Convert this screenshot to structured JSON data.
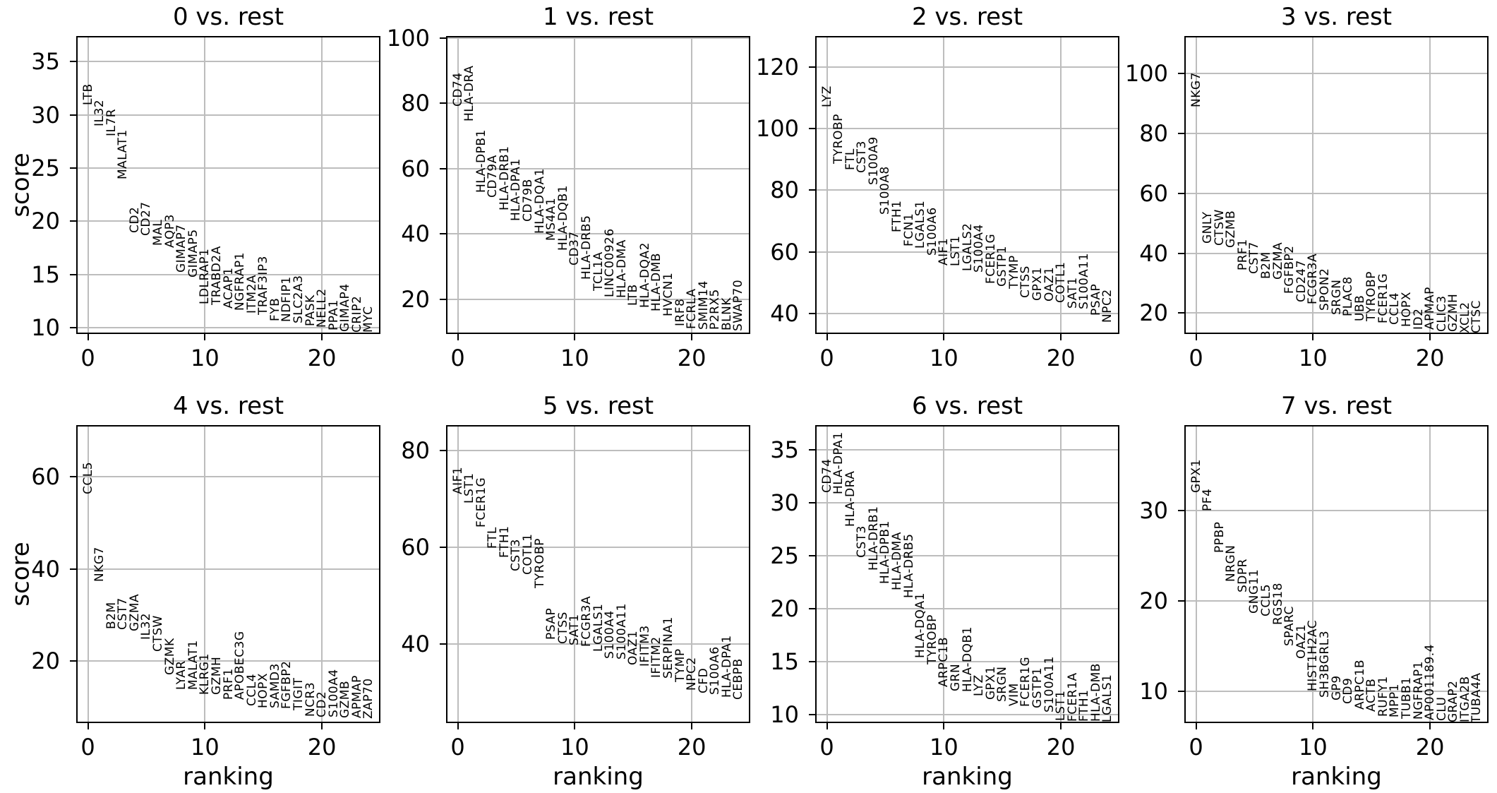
{
  "figure": {
    "background": "#ffffff",
    "text_color": "#000000",
    "grid_color": "#bdbdbd",
    "ylabel": "score",
    "xlabel": "ranking",
    "xticks": [
      0,
      10,
      20
    ],
    "xlim": [
      -1,
      25
    ]
  },
  "chart_data": [
    {
      "type": "scatter",
      "title": "0 vs. rest",
      "xlabel": "ranking",
      "ylabel": "score",
      "grid": true,
      "legend": "none",
      "xlim": [
        -1,
        25
      ],
      "xticks": [
        0,
        10,
        20
      ],
      "ylim": [
        9.4,
        37.4
      ],
      "yticks": [
        10,
        15,
        20,
        25,
        30,
        35
      ],
      "x_is_rank_of_gene": true,
      "genes": [
        "LTB",
        "IL32",
        "IL7R",
        "MALAT1",
        "CD2",
        "CD27",
        "MAL",
        "AQP3",
        "GIMAP7",
        "GIMAP5",
        "LDLRAP1",
        "TRABD2A",
        "ACAP1",
        "NGFRAP1",
        "ITM2A",
        "TRAF3IP3",
        "FYB",
        "NDFIP1",
        "SLC2A3",
        "PASK",
        "NELL2",
        "PPA1",
        "GIMAP4",
        "CRIP2",
        "MYC"
      ],
      "scores": [
        30.9,
        28.9,
        28.0,
        23.9,
        18.9,
        18.6,
        17.7,
        17.5,
        15.2,
        14.7,
        12.2,
        12.1,
        11.8,
        11.6,
        11.3,
        11.2,
        10.6,
        10.5,
        10.4,
        10.1,
        10.0,
        9.7,
        9.6,
        9.5,
        9.5
      ]
    },
    {
      "type": "scatter",
      "title": "1 vs. rest",
      "xlabel": "ranking",
      "ylabel": "score",
      "grid": true,
      "legend": "none",
      "xlim": [
        -1,
        25
      ],
      "xticks": [
        0,
        10,
        20
      ],
      "ylim": [
        9.3,
        100.6
      ],
      "yticks": [
        20,
        40,
        60,
        80,
        100
      ],
      "x_is_rank_of_gene": true,
      "genes": [
        "CD74",
        "HLA-DRA",
        "HLA-DPB1",
        "CD79A",
        "HLA-DRB1",
        "HLA-DPA1",
        "CD79B",
        "HLA-DQA1",
        "MS4A1",
        "HLA-DQB1",
        "CD37",
        "HLA-DRB5",
        "TCL1A",
        "LINC00926",
        "HLA-DMA",
        "LTB",
        "HLA-DQA2",
        "HLA-DMB",
        "HVCN1",
        "IRF8",
        "FCRLA",
        "SMIM14",
        "P2RX5",
        "BLNK",
        "SWAP70"
      ],
      "scores": [
        79.0,
        74.5,
        52.5,
        51.0,
        47.2,
        44.0,
        43.7,
        40.0,
        37.8,
        34.9,
        30.2,
        26.0,
        22.4,
        20.6,
        20.3,
        18.0,
        17.4,
        16.3,
        14.8,
        11.6,
        10.8,
        10.7,
        10.5,
        10.3,
        10.2
      ]
    },
    {
      "type": "scatter",
      "title": "2 vs. rest",
      "xlabel": "ranking",
      "ylabel": "score",
      "grid": true,
      "legend": "none",
      "xlim": [
        -1,
        25
      ],
      "xticks": [
        0,
        10,
        20
      ],
      "ylim": [
        33.4,
        130.0
      ],
      "yticks": [
        40,
        60,
        80,
        100,
        120
      ],
      "x_is_rank_of_gene": true,
      "genes": [
        "LYZ",
        "TYROBP",
        "FTL",
        "CST3",
        "S100A9",
        "S100A8",
        "FTH1",
        "FCN1",
        "LGALS1",
        "S100A6",
        "AIF1",
        "LST1",
        "LGALS2",
        "S100A4",
        "FCER1G",
        "GSTP1",
        "TYMP",
        "CTSS",
        "GPX1",
        "OAZ1",
        "COTL1",
        "SAT1",
        "S100A11",
        "PSAP",
        "NPC2"
      ],
      "scores": [
        106.9,
        88.5,
        86.6,
        85.5,
        81.7,
        72.1,
        66.4,
        61.8,
        61.0,
        58.8,
        55.7,
        55.3,
        53.8,
        53.4,
        49.6,
        48.8,
        48.1,
        45.0,
        44.2,
        43.9,
        43.5,
        41.6,
        41.5,
        39.3,
        37.0
      ]
    },
    {
      "type": "scatter",
      "title": "3 vs. rest",
      "xlabel": "ranking",
      "ylabel": "score",
      "grid": true,
      "legend": "none",
      "xlim": [
        -1,
        25
      ],
      "xticks": [
        0,
        10,
        20
      ],
      "ylim": [
        13.0,
        112.6
      ],
      "yticks": [
        20,
        40,
        60,
        80,
        100
      ],
      "x_is_rank_of_gene": true,
      "genes": [
        "NKG7",
        "GNLY",
        "CTSW",
        "GZMB",
        "PRF1",
        "CST7",
        "B2M",
        "GZMA",
        "FGFBP2",
        "CD247",
        "FCGR3A",
        "SPON2",
        "SRGN",
        "PLAC8",
        "UBB",
        "TYROBP",
        "FCER1G",
        "CCL4",
        "HOPX",
        "ID2",
        "APMAP",
        "CLIC3",
        "GZMH",
        "XCL2",
        "CTSC"
      ],
      "scores": [
        88.8,
        43.3,
        42.5,
        41.7,
        34.3,
        33.1,
        31.5,
        31.1,
        26.4,
        23.6,
        22.8,
        20.9,
        19.3,
        18.9,
        17.3,
        17.2,
        16.5,
        16.1,
        15.3,
        14.5,
        14.4,
        13.7,
        13.6,
        13.3,
        13.3
      ]
    },
    {
      "type": "scatter",
      "title": "4 vs. rest",
      "xlabel": "ranking",
      "ylabel": "score",
      "grid": true,
      "legend": "none",
      "xlim": [
        -1,
        25
      ],
      "xticks": [
        0,
        10,
        20
      ],
      "ylim": [
        6.4,
        71.3
      ],
      "yticks": [
        20,
        40,
        60
      ],
      "x_is_rank_of_gene": true,
      "genes": [
        "CCL5",
        "NKG7",
        "B2M",
        "CST7",
        "GZMA",
        "IL32",
        "CTSW",
        "GZMK",
        "LYAR",
        "MALAT1",
        "KLRG1",
        "GZMH",
        "PRF1",
        "APOBEC3G",
        "CCL4",
        "HOPX",
        "SAMD3",
        "FGFBP2",
        "TIGIT",
        "NCR3",
        "CD2",
        "S100A4",
        "GZMB",
        "APMAP",
        "ZAP70"
      ],
      "scores": [
        56.2,
        37.2,
        26.9,
        26.7,
        26.4,
        24.6,
        22.0,
        16.9,
        13.7,
        13.6,
        12.6,
        12.5,
        11.5,
        11.4,
        10.1,
        9.6,
        9.6,
        9.5,
        9.1,
        7.8,
        7.7,
        7.6,
        7.5,
        7.4,
        7.3
      ]
    },
    {
      "type": "scatter",
      "title": "5 vs. rest",
      "xlabel": "ranking",
      "ylabel": "score",
      "grid": true,
      "legend": "none",
      "xlim": [
        -1,
        25
      ],
      "xticks": [
        0,
        10,
        20
      ],
      "ylim": [
        23.6,
        85.2
      ],
      "yticks": [
        40,
        60,
        80
      ],
      "x_is_rank_of_gene": true,
      "genes": [
        "AIF1",
        "LST1",
        "FCER1G",
        "FTL",
        "FTH1",
        "CST3",
        "COTL1",
        "TYROBP",
        "PSAP",
        "CTSS",
        "SAT1",
        "FCGR3A",
        "LGALS1",
        "S100A4",
        "S100A11",
        "OAZ1",
        "IFITM3",
        "IFITM2",
        "SERPINA1",
        "TYMP",
        "NPC2",
        "CFD",
        "S100A6",
        "HLA-DPA1",
        "CEBPB"
      ],
      "scores": [
        70.9,
        69.0,
        64.1,
        59.7,
        57.8,
        55.0,
        54.2,
        51.5,
        40.8,
        40.0,
        39.6,
        39.3,
        38.4,
        36.9,
        36.8,
        35.6,
        35.3,
        33.0,
        32.8,
        32.0,
        30.3,
        29.7,
        29.5,
        28.9,
        28.4
      ]
    },
    {
      "type": "scatter",
      "title": "6 vs. rest",
      "xlabel": "ranking",
      "ylabel": "score",
      "grid": true,
      "legend": "none",
      "xlim": [
        -1,
        25
      ],
      "xticks": [
        0,
        10,
        20
      ],
      "ylim": [
        9.2,
        37.3
      ],
      "yticks": [
        10,
        15,
        20,
        25,
        30,
        35
      ],
      "x_is_rank_of_gene": true,
      "genes": [
        "CD74",
        "HLA-DPA1",
        "HLA-DRA",
        "CST3",
        "HLA-DRB1",
        "HLA-DPB1",
        "HLA-DMA",
        "HLA-DRB5",
        "HLA-DQA1",
        "TYROBP",
        "ARPC1B",
        "GRN",
        "HLA-DQB1",
        "LYZ",
        "GPX1",
        "SRGN",
        "VIM",
        "FCER1G",
        "GSTP1",
        "S100A11",
        "LST1",
        "FCER1A",
        "FTH1",
        "HLA-DMB",
        "LGALS1"
      ],
      "scores": [
        30.9,
        30.8,
        27.7,
        24.8,
        23.6,
        22.3,
        21.7,
        21.0,
        15.3,
        14.7,
        12.6,
        12.2,
        12.1,
        11.7,
        11.4,
        11.2,
        10.8,
        10.7,
        10.6,
        10.2,
        9.4,
        9.35,
        9.3,
        9.3,
        9.25
      ]
    },
    {
      "type": "scatter",
      "title": "7 vs. rest",
      "xlabel": "ranking",
      "ylabel": "score",
      "grid": true,
      "legend": "none",
      "xlim": [
        -1,
        25
      ],
      "xticks": [
        0,
        10,
        20
      ],
      "ylim": [
        6.5,
        39.4
      ],
      "yticks": [
        10,
        20,
        30
      ],
      "x_is_rank_of_gene": true,
      "genes": [
        "GPX1",
        "PF4",
        "PPBP",
        "NRGN",
        "SDPR",
        "GNG11",
        "CCL5",
        "RGS18",
        "SPARC",
        "OAZ1",
        "HIST1H2AC",
        "SH3BGRL3",
        "GP9",
        "CD9",
        "ARPC1B",
        "ACTB",
        "RUFY1",
        "MPP1",
        "TUBB1",
        "NGFRAP1",
        "AP001189.4",
        "CLU",
        "GRAP2",
        "ITGA2B",
        "TUBA4A"
      ],
      "scores": [
        31.9,
        29.9,
        25.3,
        22.1,
        20.9,
        18.6,
        18.3,
        17.3,
        15.0,
        13.6,
        10.0,
        9.3,
        9.0,
        8.6,
        8.0,
        7.75,
        7.2,
        7.1,
        7.0,
        6.9,
        6.8,
        6.7,
        6.6,
        6.6,
        6.5
      ]
    }
  ]
}
